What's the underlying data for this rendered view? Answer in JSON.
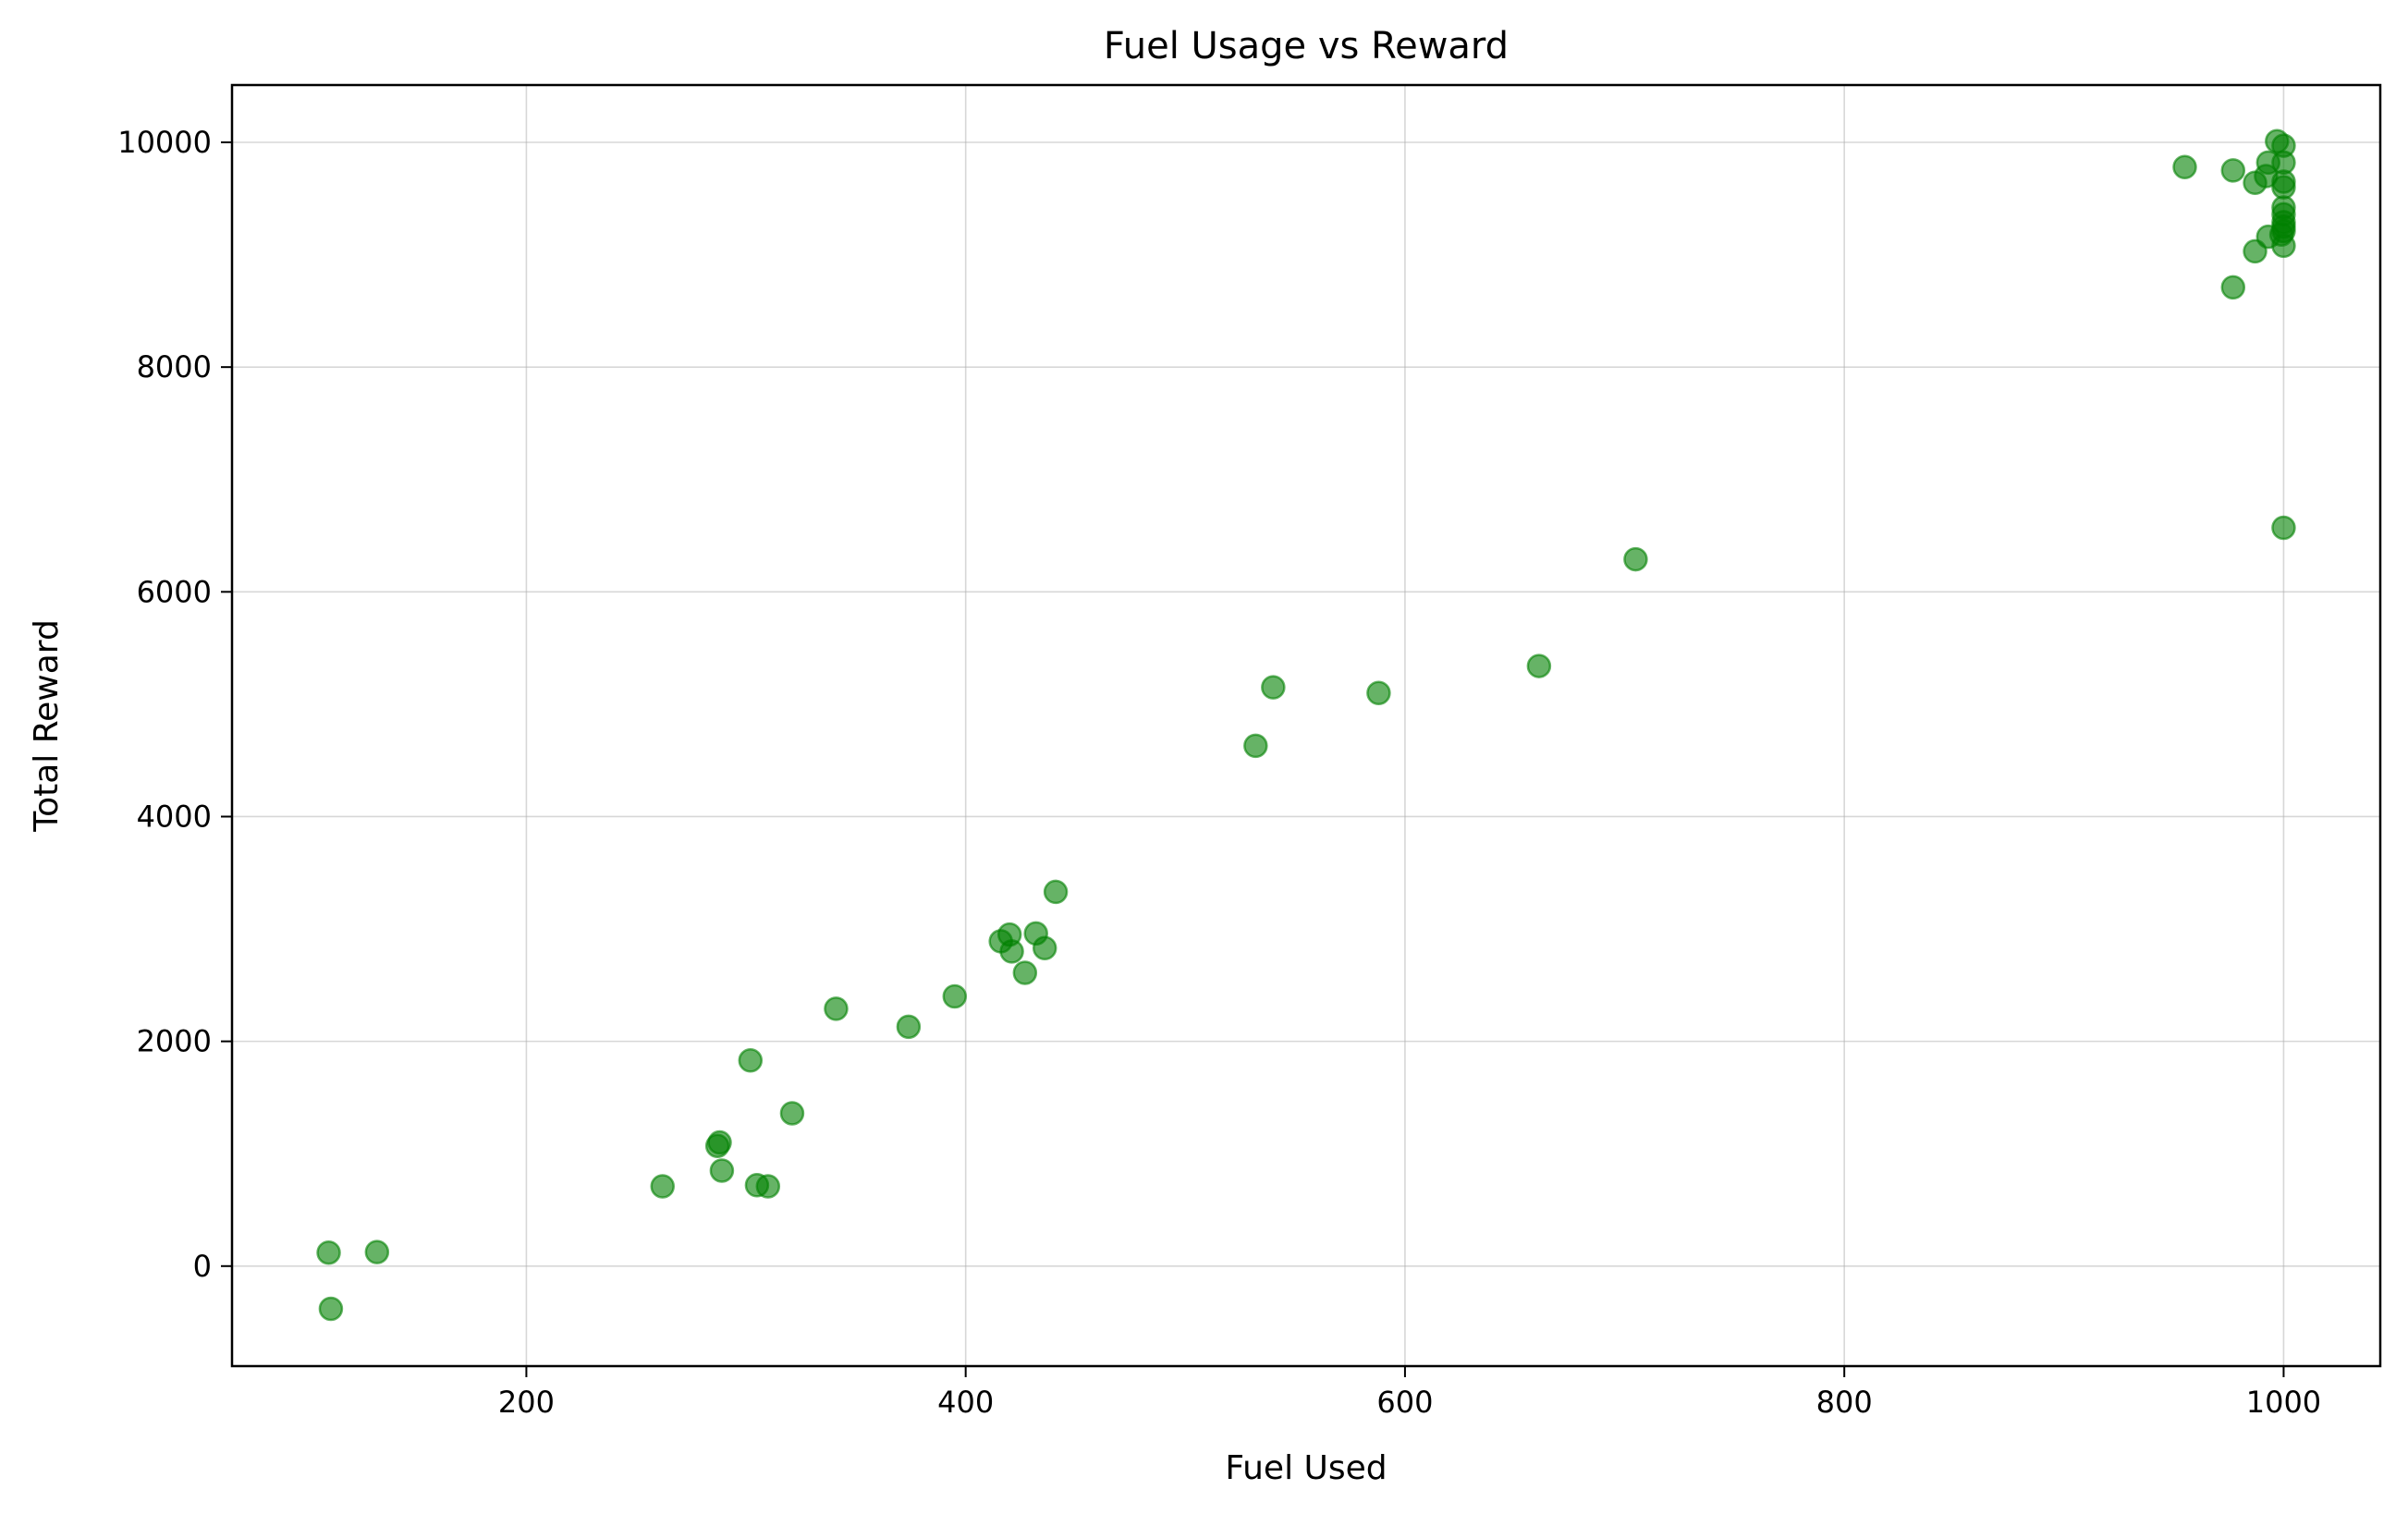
{
  "chart_data": {
    "type": "scatter",
    "title": "Fuel Usage vs Reward",
    "xlabel": "Fuel Used",
    "ylabel": "Total Reward",
    "xlim": [
      66,
      1044
    ],
    "ylim": [
      -890,
      10510
    ],
    "xticks": [
      200,
      400,
      600,
      800,
      1000
    ],
    "yticks": [
      0,
      2000,
      4000,
      6000,
      8000,
      10000
    ],
    "grid": true,
    "color": "#008000",
    "points": [
      {
        "x": 110,
        "y": 120
      },
      {
        "x": 132,
        "y": 125
      },
      {
        "x": 111,
        "y": -380
      },
      {
        "x": 262,
        "y": 710
      },
      {
        "x": 287,
        "y": 1070
      },
      {
        "x": 288,
        "y": 1100
      },
      {
        "x": 289,
        "y": 850
      },
      {
        "x": 302,
        "y": 1830
      },
      {
        "x": 305,
        "y": 720
      },
      {
        "x": 310,
        "y": 710
      },
      {
        "x": 321,
        "y": 1360
      },
      {
        "x": 341,
        "y": 2290
      },
      {
        "x": 374,
        "y": 2130
      },
      {
        "x": 395,
        "y": 2400
      },
      {
        "x": 416,
        "y": 2890
      },
      {
        "x": 420,
        "y": 2950
      },
      {
        "x": 421,
        "y": 2800
      },
      {
        "x": 427,
        "y": 2610
      },
      {
        "x": 432,
        "y": 2960
      },
      {
        "x": 436,
        "y": 2830
      },
      {
        "x": 441,
        "y": 3330
      },
      {
        "x": 532,
        "y": 4630
      },
      {
        "x": 540,
        "y": 5150
      },
      {
        "x": 588,
        "y": 5100
      },
      {
        "x": 661,
        "y": 5340
      },
      {
        "x": 705,
        "y": 6290
      },
      {
        "x": 955,
        "y": 9780
      },
      {
        "x": 977,
        "y": 9750
      },
      {
        "x": 977,
        "y": 8710
      },
      {
        "x": 987,
        "y": 9030
      },
      {
        "x": 987,
        "y": 9640
      },
      {
        "x": 992,
        "y": 9700
      },
      {
        "x": 993,
        "y": 9820
      },
      {
        "x": 993,
        "y": 9160
      },
      {
        "x": 997,
        "y": 10010
      },
      {
        "x": 999,
        "y": 9180
      },
      {
        "x": 1000,
        "y": 9970
      },
      {
        "x": 1000,
        "y": 9820
      },
      {
        "x": 1000,
        "y": 9650
      },
      {
        "x": 1000,
        "y": 9600
      },
      {
        "x": 1000,
        "y": 9420
      },
      {
        "x": 1000,
        "y": 9360
      },
      {
        "x": 1000,
        "y": 9290
      },
      {
        "x": 1000,
        "y": 9250
      },
      {
        "x": 1000,
        "y": 9210
      },
      {
        "x": 1000,
        "y": 9080
      },
      {
        "x": 1000,
        "y": 6570
      }
    ]
  }
}
